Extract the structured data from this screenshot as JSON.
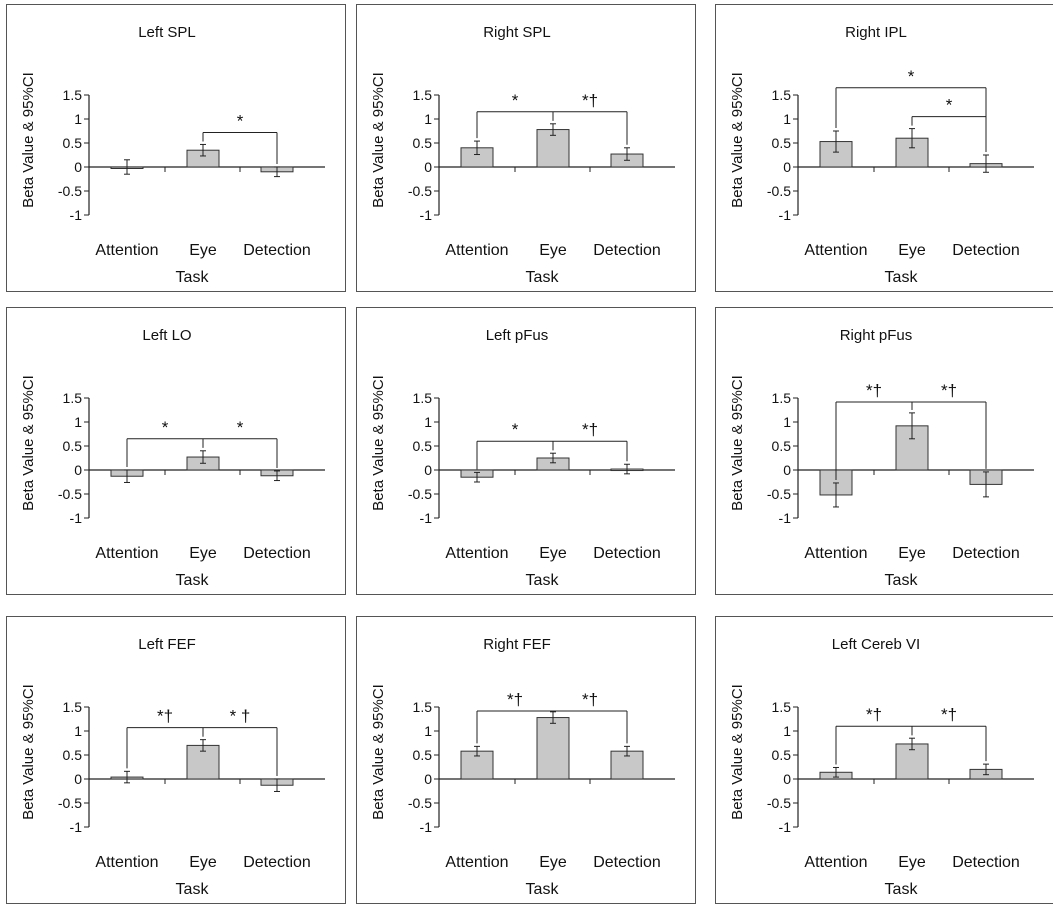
{
  "chart_data": [
    {
      "type": "bar",
      "title": "Left SPL",
      "xlabel": "Task",
      "ylabel": "Beta Value & 95%CI",
      "categories": [
        "Attention",
        "Eye",
        "Detection"
      ],
      "values": [
        0,
        0.35,
        -0.1
      ],
      "errors": [
        0.15,
        0.12,
        0.1
      ],
      "ylim": [
        -1,
        1.5
      ],
      "yticks": [
        "1.5",
        "1",
        "0.5",
        "0",
        "-0.5",
        "-1"
      ],
      "brackets": [
        {
          "from": 1,
          "to": 2,
          "label": "*"
        }
      ]
    },
    {
      "type": "bar",
      "title": "Right SPL",
      "xlabel": "Task",
      "ylabel": "Beta Value & 95%CI",
      "categories": [
        "Attention",
        "Eye",
        "Detection"
      ],
      "values": [
        0.4,
        0.78,
        0.27
      ],
      "errors": [
        0.14,
        0.12,
        0.13
      ],
      "ylim": [
        -1,
        1.5
      ],
      "yticks": [
        "1.5",
        "1",
        "0.5",
        "0",
        "-0.5",
        "-1"
      ],
      "brackets": [
        {
          "from": 0,
          "to": 1,
          "label": "*"
        },
        {
          "from": 1,
          "to": 2,
          "label": "*†"
        }
      ]
    },
    {
      "type": "bar",
      "title": "Right IPL",
      "xlabel": "Task",
      "ylabel": "Beta Value & 95%CI",
      "categories": [
        "Attention",
        "Eye",
        "Detection"
      ],
      "values": [
        0.53,
        0.6,
        0.07
      ],
      "errors": [
        0.22,
        0.2,
        0.18
      ],
      "ylim": [
        -1,
        1.5
      ],
      "yticks": [
        "1.5",
        "1",
        "0.5",
        "0",
        "-0.5",
        "-1"
      ],
      "brackets": [
        {
          "from": 0,
          "to": 2,
          "label": "*",
          "level": 1.65
        },
        {
          "from": 1,
          "to": 2,
          "label": "*",
          "level": 1.05
        }
      ]
    },
    {
      "type": "bar",
      "title": "Left LO",
      "xlabel": "Task",
      "ylabel": "Beta Value & 95%CI",
      "categories": [
        "Attention",
        "Eye",
        "Detection"
      ],
      "values": [
        -0.13,
        0.27,
        -0.12
      ],
      "errors": [
        0.13,
        0.13,
        0.1
      ],
      "ylim": [
        -1,
        1.5
      ],
      "yticks": [
        "1.5",
        "1",
        "0.5",
        "0",
        "-0.5",
        "-1"
      ],
      "brackets": [
        {
          "from": 0,
          "to": 1,
          "label": "*"
        },
        {
          "from": 1,
          "to": 2,
          "label": "*"
        }
      ]
    },
    {
      "type": "bar",
      "title": "Left pFus",
      "xlabel": "Task",
      "ylabel": "Beta Value & 95%CI",
      "categories": [
        "Attention",
        "Eye",
        "Detection"
      ],
      "values": [
        -0.15,
        0.25,
        0.02
      ],
      "errors": [
        0.1,
        0.1,
        0.1
      ],
      "ylim": [
        -1,
        1.5
      ],
      "yticks": [
        "1.5",
        "1",
        "0.5",
        "0",
        "-0.5",
        "-1"
      ],
      "brackets": [
        {
          "from": 0,
          "to": 1,
          "label": "*"
        },
        {
          "from": 1,
          "to": 2,
          "label": "*†"
        }
      ]
    },
    {
      "type": "bar",
      "title": "Right pFus",
      "xlabel": "Task",
      "ylabel": "Beta Value & 95%CI",
      "categories": [
        "Attention",
        "Eye",
        "Detection"
      ],
      "values": [
        -0.52,
        0.92,
        -0.3
      ],
      "errors": [
        0.25,
        0.27,
        0.26
      ],
      "ylim": [
        -1,
        1.5
      ],
      "yticks": [
        "1.5",
        "1",
        "0.5",
        "0",
        "-0.5",
        "-1"
      ],
      "brackets": [
        {
          "from": 0,
          "to": 1,
          "label": "*†"
        },
        {
          "from": 1,
          "to": 2,
          "label": "*†"
        }
      ]
    },
    {
      "type": "bar",
      "title": "Left FEF",
      "xlabel": "Task",
      "ylabel": "Beta Value & 95%CI",
      "categories": [
        "Attention",
        "Eye",
        "Detection"
      ],
      "values": [
        0.04,
        0.7,
        -0.13
      ],
      "errors": [
        0.12,
        0.12,
        0.13
      ],
      "ylim": [
        -1,
        1.5
      ],
      "yticks": [
        "1.5",
        "1",
        "0.5",
        "0",
        "-0.5",
        "-1"
      ],
      "brackets": [
        {
          "from": 0,
          "to": 1,
          "label": "*†"
        },
        {
          "from": 1,
          "to": 2,
          "label": "* †"
        }
      ]
    },
    {
      "type": "bar",
      "title": "Right FEF",
      "xlabel": "Task",
      "ylabel": "Beta Value & 95%CI",
      "categories": [
        "Attention",
        "Eye",
        "Detection"
      ],
      "values": [
        0.58,
        1.28,
        0.58
      ],
      "errors": [
        0.1,
        0.12,
        0.1
      ],
      "ylim": [
        -1,
        1.5
      ],
      "yticks": [
        "1.5",
        "1",
        "0.5",
        "0",
        "-0.5",
        "-1"
      ],
      "brackets": [
        {
          "from": 0,
          "to": 1,
          "label": "*†"
        },
        {
          "from": 1,
          "to": 2,
          "label": "*†"
        }
      ]
    },
    {
      "type": "bar",
      "title": "Left Cereb VI",
      "xlabel": "Task",
      "ylabel": "Beta Value & 95%CI",
      "categories": [
        "Attention",
        "Eye",
        "Detection"
      ],
      "values": [
        0.14,
        0.73,
        0.2
      ],
      "errors": [
        0.1,
        0.12,
        0.11
      ],
      "ylim": [
        -1,
        1.5
      ],
      "yticks": [
        "1.5",
        "1",
        "0.5",
        "0",
        "-0.5",
        "-1"
      ],
      "brackets": [
        {
          "from": 0,
          "to": 1,
          "label": "*†"
        },
        {
          "from": 1,
          "to": 2,
          "label": "*†"
        }
      ]
    }
  ],
  "colors": {
    "bar_fill": "#c8c8c8",
    "bar_stroke": "#333333",
    "axis": "#222222",
    "panel_border": "#555555"
  }
}
